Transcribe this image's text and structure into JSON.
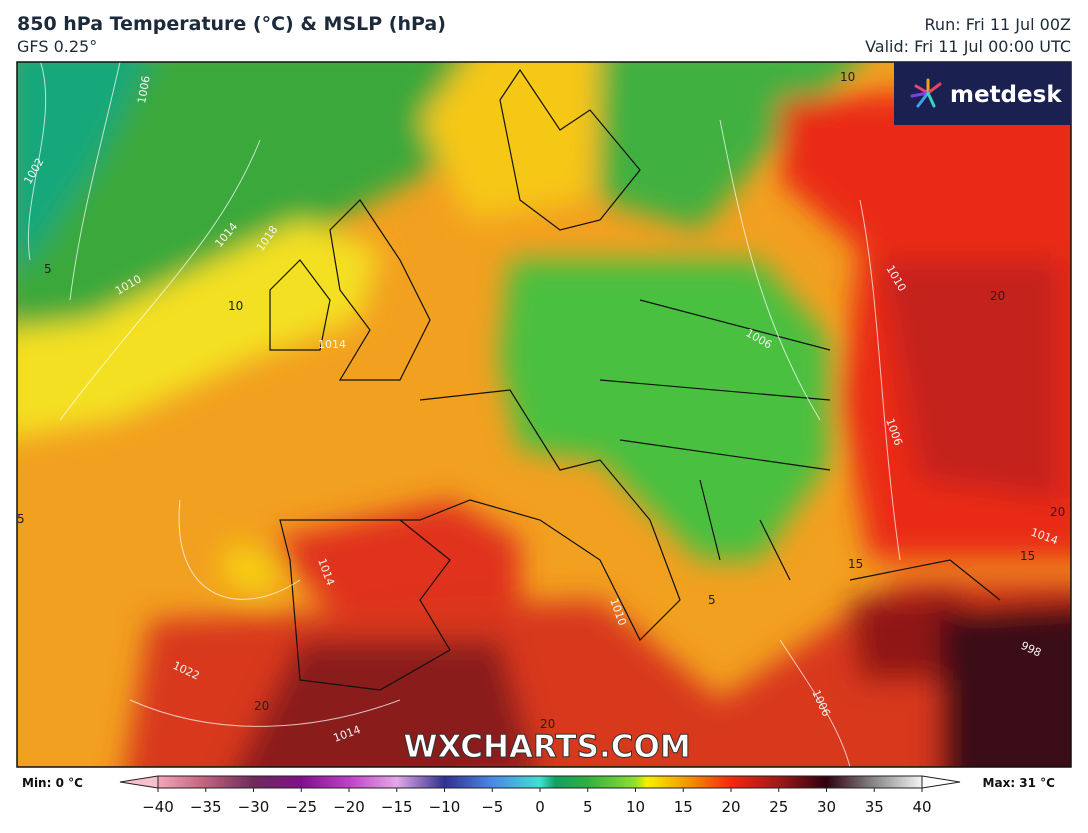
{
  "header": {
    "title": "850 hPa Temperature (°C) & MSLP (hPa)",
    "subtitle": "GFS 0.25°",
    "run": "Run: Fri 11 Jul 00Z",
    "valid": "Valid: Fri 11 Jul 00:00 UTC"
  },
  "logo": "metdesk",
  "watermark": "WXCHARTS.COM",
  "map_labels": {
    "isobars": [
      "1006",
      "1002",
      "1014",
      "1018",
      "1010",
      "1022",
      "1014",
      "1014",
      "1010",
      "1006",
      "1006",
      "1014",
      "998",
      "1006",
      "1014",
      "1010"
    ],
    "isotherms": [
      "10",
      "5",
      "10",
      "5",
      "20",
      "15",
      "5",
      "20",
      "20",
      "15",
      "20"
    ]
  },
  "colorbar": {
    "min_label": "Min: 0 °C",
    "max_label": "Max: 31 °C",
    "lim": [
      -40,
      40
    ],
    "ticks": [
      {
        "value": -40,
        "label": "−40"
      },
      {
        "value": -35,
        "label": "−35"
      },
      {
        "value": -30,
        "label": "−30"
      },
      {
        "value": -25,
        "label": "−25"
      },
      {
        "value": -20,
        "label": "−20"
      },
      {
        "value": -15,
        "label": "−15"
      },
      {
        "value": -10,
        "label": "−10"
      },
      {
        "value": -5,
        "label": "−5"
      },
      0,
      5,
      10,
      15,
      20,
      25,
      30,
      35,
      40
    ]
  }
}
